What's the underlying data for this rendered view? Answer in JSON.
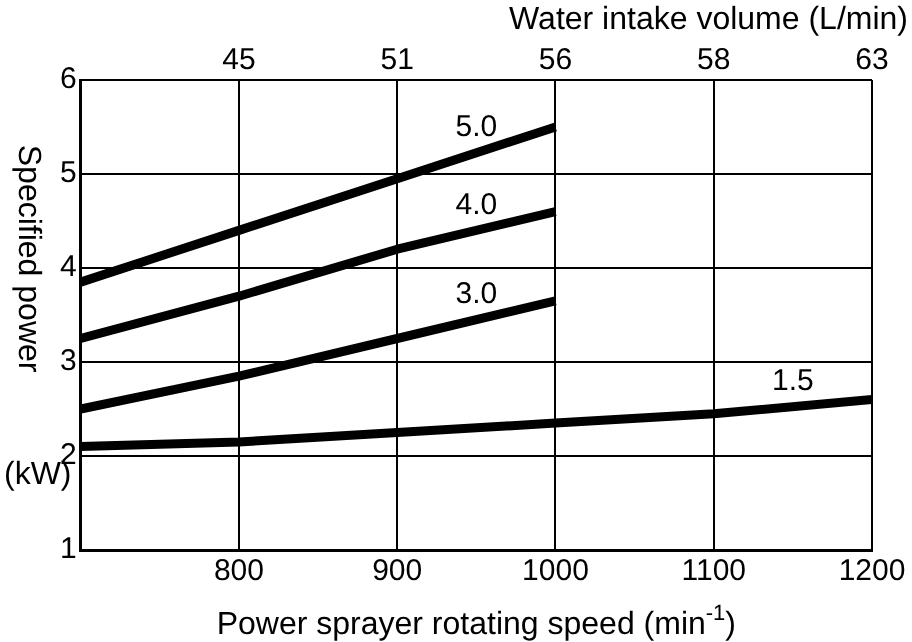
{
  "chart_data": {
    "type": "line",
    "xlabel": "Power sprayer rotating speed (min$^{-1}$)",
    "ylabel": "Specified power",
    "x2label": "Water intake volume (L/min)",
    "annotations": [
      "(kW)",
      "45",
      "51",
      "56",
      "58",
      "63"
    ],
    "xlim": [
      700,
      1200
    ],
    "xticks": [
      800,
      900,
      1000,
      1100,
      1200
    ],
    "ylim": [
      1,
      6
    ],
    "yticks": [
      1,
      2,
      3,
      4,
      5,
      6
    ],
    "grid": true,
    "legend": false,
    "marker": "none",
    "line_style": "solid",
    "series": [
      {
        "name": "5.0",
        "color": "#000000",
        "x": [
          700,
          800,
          900,
          1000
        ],
        "values": [
          3.85,
          4.4,
          4.95,
          5.5
        ]
      },
      {
        "name": "4.0",
        "color": "#000000",
        "x": [
          700,
          800,
          900,
          1000
        ],
        "values": [
          3.25,
          3.7,
          4.2,
          4.6
        ]
      },
      {
        "name": "3.0",
        "color": "#000000",
        "x": [
          700,
          800,
          900,
          1000
        ],
        "values": [
          2.5,
          2.85,
          3.25,
          3.65
        ]
      },
      {
        "name": "1.5",
        "color": "#000000",
        "x": [
          700,
          800,
          900,
          1000,
          1100,
          1200
        ],
        "values": [
          2.1,
          2.15,
          2.25,
          2.35,
          2.45,
          2.6
        ]
      }
    ]
  }
}
